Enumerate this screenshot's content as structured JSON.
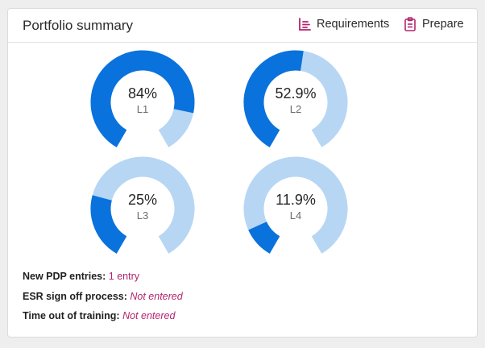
{
  "header": {
    "title": "Portfolio summary",
    "requirements_label": "Requirements",
    "prepare_label": "Prepare"
  },
  "colors": {
    "filled": "#0a72dc",
    "track": "#b7d6f4",
    "accent": "#b3246e"
  },
  "gauges": [
    {
      "value_text": "84%",
      "label": "L1",
      "fraction": 0.84
    },
    {
      "value_text": "52.9%",
      "label": "L2",
      "fraction": 0.529
    },
    {
      "value_text": "25%",
      "label": "L3",
      "fraction": 0.25
    },
    {
      "value_text": "11.9%",
      "label": "L4",
      "fraction": 0.119
    }
  ],
  "meta": {
    "pdp_label": "New PDP entries:",
    "pdp_value": "1 entry",
    "esr_label": "ESR sign off process:",
    "esr_value": "Not entered",
    "time_label": "Time out of training:",
    "time_value": "Not entered"
  }
}
